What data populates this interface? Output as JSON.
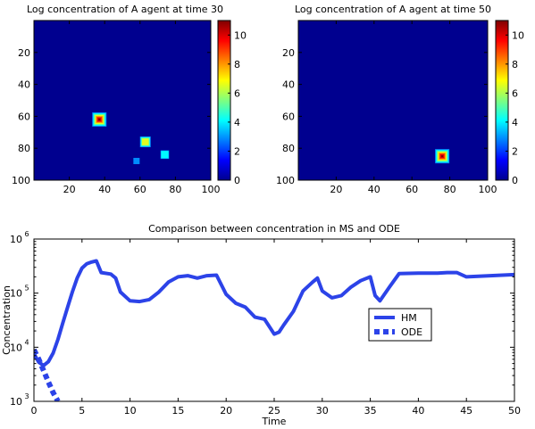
{
  "figure": {
    "background": "#ffffff"
  },
  "chart_data": [
    {
      "type": "heatmap",
      "title": "Log concentration of A agent at time 30",
      "colormap": "jet",
      "xlim": [
        0,
        100
      ],
      "ylim": [
        0,
        100
      ],
      "y_direction": "reversed",
      "xticks": [
        20,
        40,
        60,
        80,
        100
      ],
      "yticks": [
        20,
        40,
        60,
        80,
        100
      ],
      "colorbar": {
        "range": [
          0,
          11
        ],
        "ticks": [
          0,
          2,
          4,
          6,
          8,
          10
        ]
      },
      "background_value": 0,
      "hotspots": [
        {
          "x": 37,
          "y": 62,
          "peak": 11
        },
        {
          "x": 63,
          "y": 76,
          "peak": 7
        },
        {
          "x": 74,
          "y": 84,
          "peak": 4.5
        },
        {
          "x": 58,
          "y": 88,
          "peak": 2
        }
      ]
    },
    {
      "type": "heatmap",
      "title": "Log concentration of A agent at time 50",
      "colormap": "jet",
      "xlim": [
        0,
        100
      ],
      "ylim": [
        0,
        100
      ],
      "y_direction": "reversed",
      "xticks": [
        20,
        40,
        60,
        80,
        100
      ],
      "yticks": [
        20,
        40,
        60,
        80,
        100
      ],
      "colorbar": {
        "range": [
          0,
          11
        ],
        "ticks": [
          0,
          2,
          4,
          6,
          8,
          10
        ]
      },
      "background_value": 0,
      "hotspots": [
        {
          "x": 76,
          "y": 85,
          "peak": 11
        }
      ]
    },
    {
      "type": "line",
      "title": "Comparison between concentration in MS and ODE",
      "xlabel": "Time",
      "ylabel": "Concentration",
      "xlim": [
        0,
        50
      ],
      "ylim": [
        1000,
        1000000
      ],
      "yscale": "log",
      "xticks": [
        0,
        5,
        10,
        15,
        20,
        25,
        30,
        35,
        40,
        45,
        50
      ],
      "yticks": [
        {
          "value": 1000,
          "base": "10",
          "exp": "3"
        },
        {
          "value": 10000,
          "base": "10",
          "exp": "4"
        },
        {
          "value": 100000,
          "base": "10",
          "exp": "5"
        },
        {
          "value": 1000000,
          "base": "10",
          "exp": "6"
        }
      ],
      "legend": {
        "position": "right",
        "entries": [
          "HM",
          "ODE"
        ]
      },
      "series": [
        {
          "name": "HM",
          "color": "#2c43e8",
          "style": "solid",
          "x": [
            0,
            0.5,
            1,
            1.5,
            2,
            2.5,
            3,
            3.5,
            4,
            4.5,
            5,
            5.5,
            6,
            6.5,
            7,
            8,
            8.5,
            9,
            10,
            11,
            12,
            13,
            14,
            15,
            16,
            17,
            18,
            19,
            20,
            21,
            22,
            23,
            24,
            25,
            25.5,
            26,
            27,
            28,
            29,
            29.5,
            30,
            31,
            32,
            33,
            34,
            35,
            35.5,
            36,
            37,
            38,
            40,
            42,
            43,
            44,
            45,
            50
          ],
          "y": [
            7600,
            5300,
            4600,
            5400,
            7800,
            14000,
            28000,
            55000,
            105000,
            190000,
            290000,
            350000,
            375000,
            395000,
            240000,
            225000,
            190000,
            105000,
            72000,
            70000,
            76000,
            105000,
            160000,
            200000,
            210000,
            190000,
            210000,
            215000,
            95000,
            65000,
            55000,
            36000,
            33000,
            17500,
            19000,
            26000,
            46000,
            110000,
            160000,
            190000,
            110000,
            82000,
            90000,
            130000,
            170000,
            200000,
            90000,
            72000,
            130000,
            230000,
            235000,
            235000,
            240000,
            240000,
            200000,
            220000
          ]
        },
        {
          "name": "ODE",
          "color": "#2c43e8",
          "style": "dashed",
          "x": [
            0,
            0.5,
            1,
            1.5,
            2,
            2.5
          ],
          "y": [
            9000,
            6000,
            3700,
            2300,
            1450,
            1000
          ]
        }
      ]
    }
  ]
}
